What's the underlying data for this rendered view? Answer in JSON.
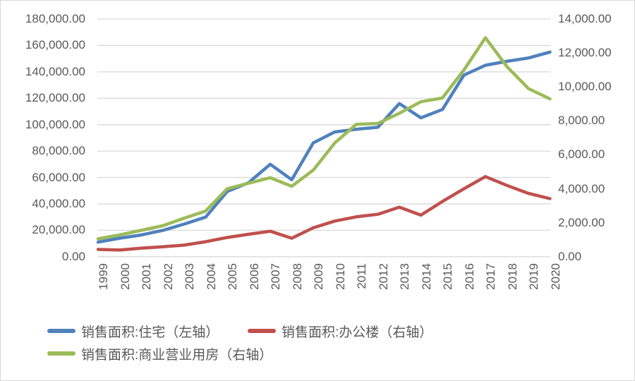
{
  "chart_data": {
    "type": "line",
    "title": "",
    "x_categories": [
      "1999",
      "2000",
      "2001",
      "2002",
      "2003",
      "2004",
      "2005",
      "2006",
      "2007",
      "2008",
      "2009",
      "2010",
      "2011",
      "2012",
      "2013",
      "2014",
      "2015",
      "2016",
      "2017",
      "2018",
      "2019",
      "2020"
    ],
    "axes": {
      "left": {
        "min": 0,
        "max": 180000,
        "step": 20000,
        "tick_labels": [
          "180,000.00",
          "160,000.00",
          "140,000.00",
          "120,000.00",
          "100,000.00",
          "80,000.00",
          "60,000.00",
          "40,000.00",
          "20,000.00",
          "0.00"
        ]
      },
      "right": {
        "min": 0,
        "max": 14000,
        "step": 2000,
        "tick_labels": [
          "14,000.00",
          "12,000.00",
          "10,000.00",
          "8,000.00",
          "6,000.00",
          "4,000.00",
          "2,000.00",
          "0.00"
        ]
      }
    },
    "grid": true,
    "legend_position": "bottom",
    "series": [
      {
        "name": "销售面积:住宅（左轴）",
        "axis": "left",
        "color": "#4F81BD",
        "values": [
          11000,
          14000,
          16400,
          19900,
          24700,
          30000,
          49400,
          56100,
          70000,
          58300,
          86200,
          94500,
          96500,
          98000,
          116000,
          105200,
          111500,
          137500,
          145000,
          148000,
          150500,
          155000
        ]
      },
      {
        "name": "销售面积:办公楼（右轴）",
        "axis": "right",
        "color": "#C0504D",
        "values": [
          430,
          390,
          500,
          580,
          680,
          880,
          1130,
          1320,
          1500,
          1090,
          1700,
          2100,
          2350,
          2500,
          2920,
          2450,
          3250,
          4000,
          4720,
          4200,
          3730,
          3420
        ]
      },
      {
        "name": "销售面积:商业营业用房（右轴）",
        "axis": "right",
        "color": "#9BBB59",
        "values": [
          1050,
          1280,
          1550,
          1820,
          2270,
          2690,
          4000,
          4330,
          4650,
          4150,
          5100,
          6700,
          7800,
          7850,
          8450,
          9130,
          9350,
          11000,
          12900,
          11200,
          9900,
          9300
        ]
      }
    ]
  },
  "colors": {
    "gridline": "#D9D9D9",
    "axis_text": "#595959",
    "border": "#D9D9D9",
    "background": "#FFFFFF"
  }
}
